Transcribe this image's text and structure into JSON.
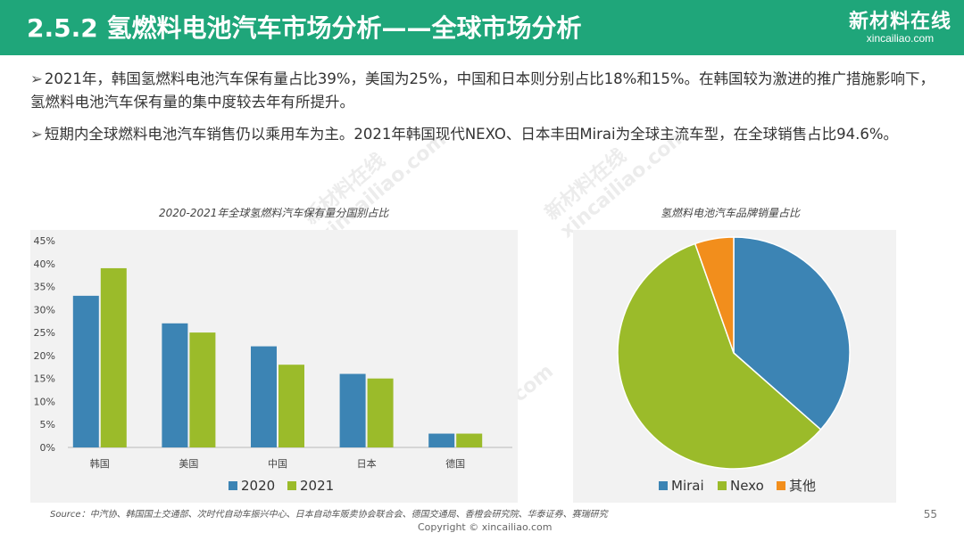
{
  "header": {
    "title": "2.5.2 氢燃料电池汽车市场分析——全球市场分析"
  },
  "logo": {
    "cn": "新材料在线",
    "en": "xincailiao.com"
  },
  "bullets": [
    "2021年，韩国氢燃料电池汽车保有量占比39%，美国为25%，中国和日本则分别占比18%和15%。在韩国较为激进的推广措施影响下，氢燃料电池汽车保有量的集中度较去年有所提升。",
    "短期内全球燃料电池汽车销售仍以乘用车为主。2021年韩国现代NEXO、日本丰田Mirai为全球主流车型，在全球销售占比94.6%。"
  ],
  "bullet_marker": "➢",
  "watermark": {
    "cn": "新材料在线",
    "en": "xincailiao.com"
  },
  "chart_data": [
    {
      "type": "bar",
      "title": "2020-2021年全球氢燃料汽车保有量分国别占比",
      "categories": [
        "韩国",
        "美国",
        "中国",
        "日本",
        "德国"
      ],
      "series": [
        {
          "name": "2020",
          "values": [
            33,
            27,
            22,
            16,
            3
          ],
          "color": "#3c84b4"
        },
        {
          "name": "2021",
          "values": [
            39,
            25,
            18,
            15,
            3
          ],
          "color": "#9bbb2a"
        }
      ],
      "yticks": [
        "0%",
        "5%",
        "10%",
        "15%",
        "20%",
        "25%",
        "30%",
        "35%",
        "40%",
        "45%"
      ],
      "ylim": [
        0,
        45
      ],
      "grid": false,
      "legend": "bottom"
    },
    {
      "type": "pie",
      "title": "氢燃料电池汽车品牌销量占比",
      "slices": [
        {
          "name": "Mirai",
          "value": 36.5,
          "color": "#3c84b4"
        },
        {
          "name": "Nexo",
          "value": 58.1,
          "color": "#9bbb2a"
        },
        {
          "name": "其他",
          "value": 5.4,
          "color": "#f28e1c"
        }
      ],
      "legend": "bottom"
    }
  ],
  "footer": {
    "source": "Source：中汽协、韩国国土交通部、次时代自动车振兴中心、日本自动车贩卖协会联合会、德国交通局、香橙会研究院、华泰证券、赛瑞研究",
    "copyright": "Copyright © xincailiao.com",
    "page": "55"
  }
}
